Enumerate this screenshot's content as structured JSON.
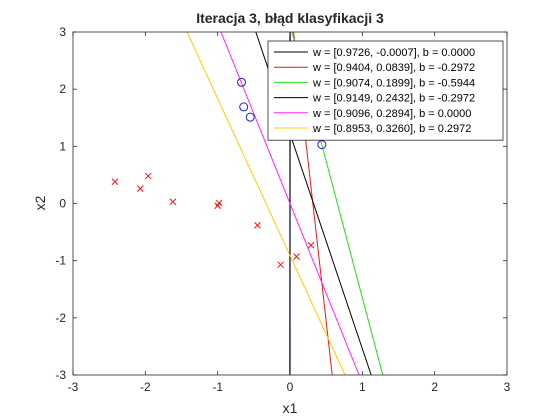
{
  "chart_data": {
    "type": "scatter",
    "title": "Iteracja 3, błąd klasyfikacji 3",
    "xlabel": "x1",
    "ylabel": "x2",
    "xlim": [
      -3,
      3
    ],
    "ylim": [
      -3,
      3
    ],
    "xticks": [
      "-3",
      "-2",
      "-1",
      "0",
      "1",
      "2",
      "3"
    ],
    "yticks": [
      "-3",
      "-2",
      "-1",
      "0",
      "1",
      "2",
      "3"
    ],
    "grid": false,
    "legend_position": "top-right",
    "points": {
      "class_x": {
        "marker": "x",
        "color": "#e41a1c",
        "x": [
          -2.42,
          -2.07,
          -1.96,
          -1.62,
          -1.0,
          -0.98,
          -0.45,
          -0.13,
          0.09,
          0.29
        ],
        "y": [
          0.38,
          0.26,
          0.48,
          0.03,
          -0.04,
          0.01,
          -0.38,
          -1.07,
          -0.93,
          -0.73
        ]
      },
      "class_o": {
        "marker": "o",
        "color": "#1f1fd6",
        "x": [
          -0.67,
          -0.64,
          -0.55,
          0.44
        ],
        "y": [
          2.12,
          1.69,
          1.51,
          1.03
        ]
      }
    },
    "lines": [
      {
        "label": "w = [0.9726, -0.0007], b = 0.0000",
        "color": "#000000",
        "w1": 0.9726,
        "w2": -0.0007,
        "b": 0.0
      },
      {
        "label": "w = [0.9404, 0.0839], b = -0.2972",
        "color": "#e41a1c",
        "w1": 0.9404,
        "w2": 0.0839,
        "b": -0.2972
      },
      {
        "label": "w = [0.9074, 0.1899], b = -0.5944",
        "color": "#22dd22",
        "w1": 0.9074,
        "w2": 0.1899,
        "b": -0.5944
      },
      {
        "label": "w = [0.9149, 0.2432], b = -0.2972",
        "color": "#000000",
        "w1": 0.9149,
        "w2": 0.2432,
        "b": -0.2972
      },
      {
        "label": "w = [0.9096, 0.2894], b = 0.0000",
        "color": "#ff22ff",
        "w1": 0.9096,
        "w2": 0.2894,
        "b": 0.0
      },
      {
        "label": "w = [0.8953, 0.3260], b = 0.2972",
        "color": "#ffcc00",
        "w1": 0.8953,
        "w2": 0.326,
        "b": 0.2972
      }
    ],
    "axis_marker_line": {
      "color": "#1f1fd6",
      "x": 0
    }
  }
}
